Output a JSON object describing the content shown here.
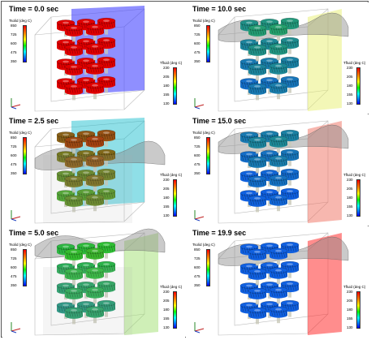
{
  "panels": [
    {
      "time": "Time = 0.0 sec",
      "state": 0.0,
      "plane": "#4444ff",
      "plane_opacity": 0.6,
      "plane_side": "back",
      "free_surface": false
    },
    {
      "time": "Time = 10.0 sec",
      "state": 0.8,
      "plane": "#e8f070",
      "plane_opacity": 0.5,
      "plane_side": "right",
      "free_surface": true
    },
    {
      "time": "Time = 2.5 sec",
      "state": 0.3,
      "plane": "#20c0d0",
      "plane_opacity": 0.5,
      "plane_side": "back",
      "free_surface": true
    },
    {
      "time": "Time = 15.0 sec",
      "state": 0.92,
      "plane": "#f07060",
      "plane_opacity": 0.5,
      "plane_side": "right",
      "free_surface": true
    },
    {
      "time": "Time = 5.0 sec",
      "state": 0.6,
      "plane": "#a0e070",
      "plane_opacity": 0.5,
      "plane_side": "right",
      "free_surface": true
    },
    {
      "time": "Time = 19.9 sec",
      "state": 1.0,
      "plane": "#ff3030",
      "plane_opacity": 0.55,
      "plane_side": "right",
      "free_surface": true
    }
  ],
  "tsolid_colorbar": {
    "title": "Tsolid (deg C)",
    "ticks": [
      "850",
      "725",
      "600",
      "475",
      "350"
    ]
  },
  "tfluid_colorbar": {
    "title": "Tfluid (deg C)",
    "ticks": [
      "230",
      "205",
      "180",
      "155",
      "130"
    ]
  },
  "colors": {
    "hot": "#e00000",
    "warm": "#30c030",
    "cool": "#1060e0"
  },
  "icons": {
    "axes": "xyz-axes-icon"
  }
}
